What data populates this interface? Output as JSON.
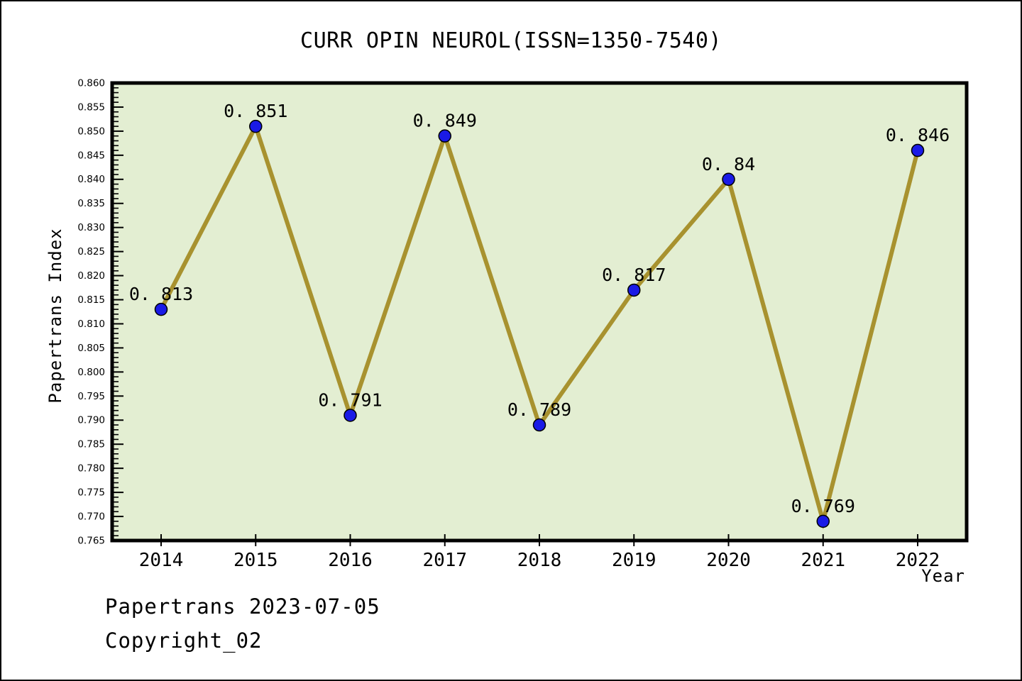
{
  "chart_data": {
    "type": "line",
    "title": "CURR OPIN NEUROL(ISSN=1350-7540)",
    "xlabel": "Year",
    "ylabel": "Papertrans Index",
    "categories": [
      "2014",
      "2015",
      "2016",
      "2017",
      "2018",
      "2019",
      "2020",
      "2021",
      "2022"
    ],
    "series": [
      {
        "name": "Papertrans Index",
        "values": [
          0.813,
          0.851,
          0.791,
          0.849,
          0.789,
          0.817,
          0.84,
          0.769,
          0.846
        ],
        "point_labels": [
          "0. 813",
          "0. 851",
          "0. 791",
          "0. 849",
          "0. 789",
          "0. 817",
          "0. 84",
          "0. 769",
          "0. 846"
        ]
      }
    ],
    "ylim": [
      0.765,
      0.86
    ],
    "ytick_major_step": 0.005,
    "ytick_minor_step": 0.001,
    "ytick_decimals": 3,
    "grid": false,
    "legend": "none",
    "colors": {
      "plot_background": "#e3eed2",
      "line": "#a8922f",
      "marker_fill": "#1a1ae6",
      "marker_edge": "#000000",
      "axis": "#000000",
      "text": "#000000",
      "page_background": "#ffffff"
    }
  },
  "footer": {
    "date_line": "Papertrans 2023-07-05",
    "copyright_line": "Copyright_02"
  }
}
